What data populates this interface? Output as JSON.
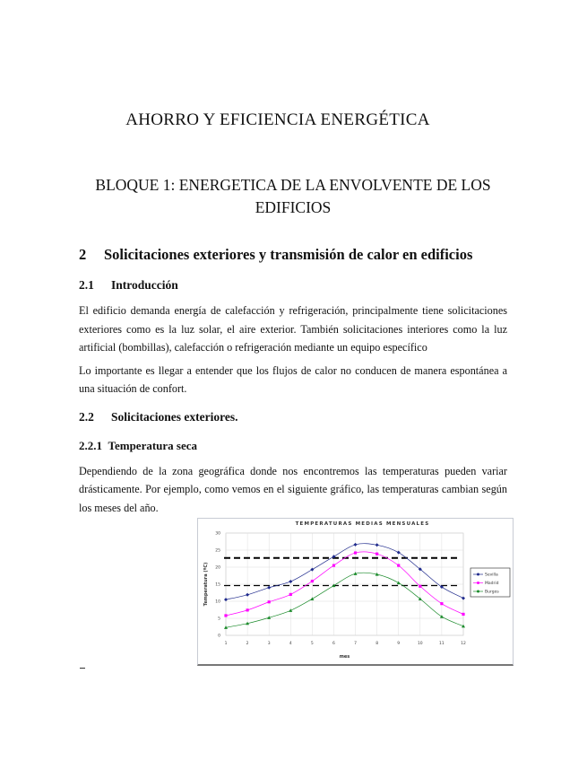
{
  "document": {
    "title": "AHORRO Y EFICIENCIA ENERGÉTICA",
    "block_title": "BLOQUE 1: ENERGETICA DE LA ENVOLVENTE DE LOS EDIFICIOS",
    "section": {
      "number": "2",
      "title": "Solicitaciones exteriores y transmisión de calor en edificios"
    },
    "subsection_1": {
      "number": "2.1",
      "title": "Introducción"
    },
    "paragraph_1": "El edificio demanda energía de calefacción y refrigeración, principalmente tiene solicitaciones exteriores como es la luz solar, el aire exterior. También solicitaciones interiores como la luz artificial (bombillas), calefacción o refrigeración mediante un equipo específico",
    "paragraph_2": "Lo importante es llegar a entender que los flujos de calor no conducen de manera espontánea a una situación de confort.",
    "subsection_2": {
      "number": "2.2",
      "title": "Solicitaciones exteriores."
    },
    "subsubsection": {
      "number": "2.2.1",
      "title": "Temperatura seca"
    },
    "paragraph_3": "Dependiendo de la zona geográfica donde nos encontremos las temperaturas pueden variar drásticamente. Por ejemplo, como vemos en el siguiente gráfico, las temperaturas cambian según los meses del año."
  },
  "chart_data": {
    "type": "line",
    "title": "TEMPERATURAS MEDIAS MENSUALES",
    "xlabel": "mes",
    "ylabel": "Temperatura (ºC)",
    "x": [
      1,
      2,
      3,
      4,
      5,
      6,
      7,
      8,
      9,
      10,
      11,
      12
    ],
    "xlim": [
      1,
      12
    ],
    "ylim": [
      0,
      30
    ],
    "yticks": [
      0,
      5,
      10,
      15,
      20,
      25,
      30
    ],
    "grid": true,
    "legend": "right",
    "series": [
      {
        "name": "Sevilla",
        "color": "#1f2a8c",
        "marker": "diamond",
        "values": [
          10.5,
          11.9,
          14.0,
          15.8,
          19.3,
          23.1,
          26.6,
          26.5,
          24.3,
          19.4,
          14.2,
          10.9
        ]
      },
      {
        "name": "Madrid",
        "color": "#ff00ff",
        "marker": "square",
        "values": [
          5.8,
          7.4,
          9.8,
          12.0,
          15.9,
          20.5,
          24.2,
          23.9,
          20.5,
          14.4,
          9.3,
          6.2
        ]
      },
      {
        "name": "Burgos",
        "color": "#1a8a2a",
        "marker": "triangle",
        "values": [
          2.3,
          3.5,
          5.2,
          7.3,
          10.7,
          14.6,
          18.1,
          17.9,
          15.4,
          10.7,
          5.5,
          2.7
        ]
      }
    ],
    "reference_lines": [
      {
        "y": 22.7,
        "style": "dashed",
        "color": "#000000"
      },
      {
        "y": 14.6,
        "style": "dashed",
        "color": "#000000"
      }
    ]
  }
}
